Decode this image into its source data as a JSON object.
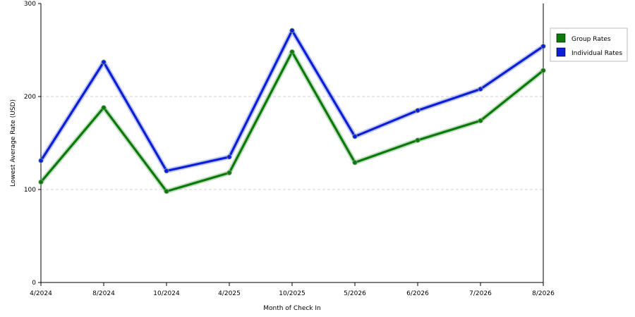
{
  "chart_data": {
    "type": "line",
    "title": "",
    "xlabel": "Month of Check In",
    "ylabel": "Lowest Average Rate (USD)",
    "categories": [
      "4/2024",
      "8/2024",
      "10/2024",
      "4/2025",
      "10/2025",
      "5/2026",
      "6/2026",
      "7/2026",
      "8/2026"
    ],
    "ylim": [
      0,
      300
    ],
    "yticks": [
      0,
      100,
      200,
      300
    ],
    "grid": true,
    "legend_position": "right",
    "series": [
      {
        "name": "Group Rates",
        "color": "#0b7a0b",
        "values": [
          108,
          188,
          98,
          118,
          248,
          129,
          153,
          174,
          228
        ]
      },
      {
        "name": "Individual Rates",
        "color": "#0a1fd6",
        "values": [
          131,
          237,
          120,
          135,
          271,
          157,
          185,
          208,
          254
        ]
      }
    ]
  }
}
